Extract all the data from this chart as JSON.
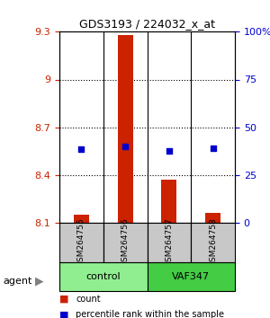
{
  "title": "GDS3193 / 224032_x_at",
  "samples": [
    "GSM264755",
    "GSM264756",
    "GSM264757",
    "GSM264758"
  ],
  "groups": [
    "control",
    "control",
    "VAF347",
    "VAF347"
  ],
  "group_colors": {
    "control": "#90EE90",
    "VAF347": "#00CC00"
  },
  "bar_values": [
    8.15,
    9.28,
    8.37,
    8.16
  ],
  "dot_values": [
    8.56,
    8.58,
    8.55,
    8.57
  ],
  "bar_color": "#CC2200",
  "dot_color": "#0000CC",
  "ylim_left": [
    8.1,
    9.3
  ],
  "ylim_right": [
    0,
    100
  ],
  "right_ticks": [
    0,
    25,
    50,
    75,
    100
  ],
  "right_tick_labels": [
    "0",
    "25",
    "50",
    "75",
    "100%"
  ],
  "left_ticks": [
    8.1,
    8.4,
    8.7,
    9.0,
    9.3
  ],
  "left_tick_labels": [
    "8.1",
    "8.4",
    "8.7",
    "9",
    "9.3"
  ],
  "hline_values": [
    9.0,
    8.7,
    8.4
  ],
  "ylabel_left_color": "#CC2200",
  "ylabel_right_color": "#0000CC",
  "group_label": "agent",
  "legend_count_label": "count",
  "legend_pct_label": "percentile rank within the sample"
}
